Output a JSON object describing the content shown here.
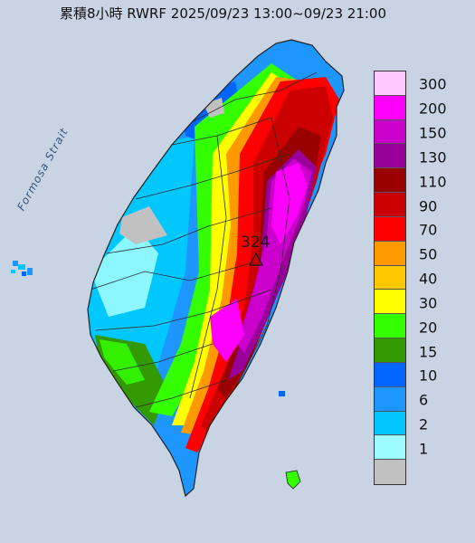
{
  "title": "累積8小時 RWRF 2025/09/23 13:00~09/23 21:00",
  "strait_label": "Formosa Strait",
  "max_value": "324",
  "legend": [
    {
      "label": "300",
      "color": "#fdc8fd"
    },
    {
      "label": "200",
      "color": "#fc00fc"
    },
    {
      "label": "150",
      "color": "#cc00cc"
    },
    {
      "label": "130",
      "color": "#990099"
    },
    {
      "label": "110",
      "color": "#990000"
    },
    {
      "label": "90",
      "color": "#cc0000"
    },
    {
      "label": "70",
      "color": "#ff0000"
    },
    {
      "label": "50",
      "color": "#ff9900"
    },
    {
      "label": "40",
      "color": "#ffc800"
    },
    {
      "label": "30",
      "color": "#ffff00"
    },
    {
      "label": "20",
      "color": "#33ff00"
    },
    {
      "label": "15",
      "color": "#339900"
    },
    {
      "label": "10",
      "color": "#0066ff"
    },
    {
      "label": "6",
      "color": "#1e96ff"
    },
    {
      "label": "2",
      "color": "#00c8ff"
    },
    {
      "label": "1",
      "color": "#9cfcff"
    },
    {
      "label": "",
      "color": "#c1c1c1"
    }
  ]
}
